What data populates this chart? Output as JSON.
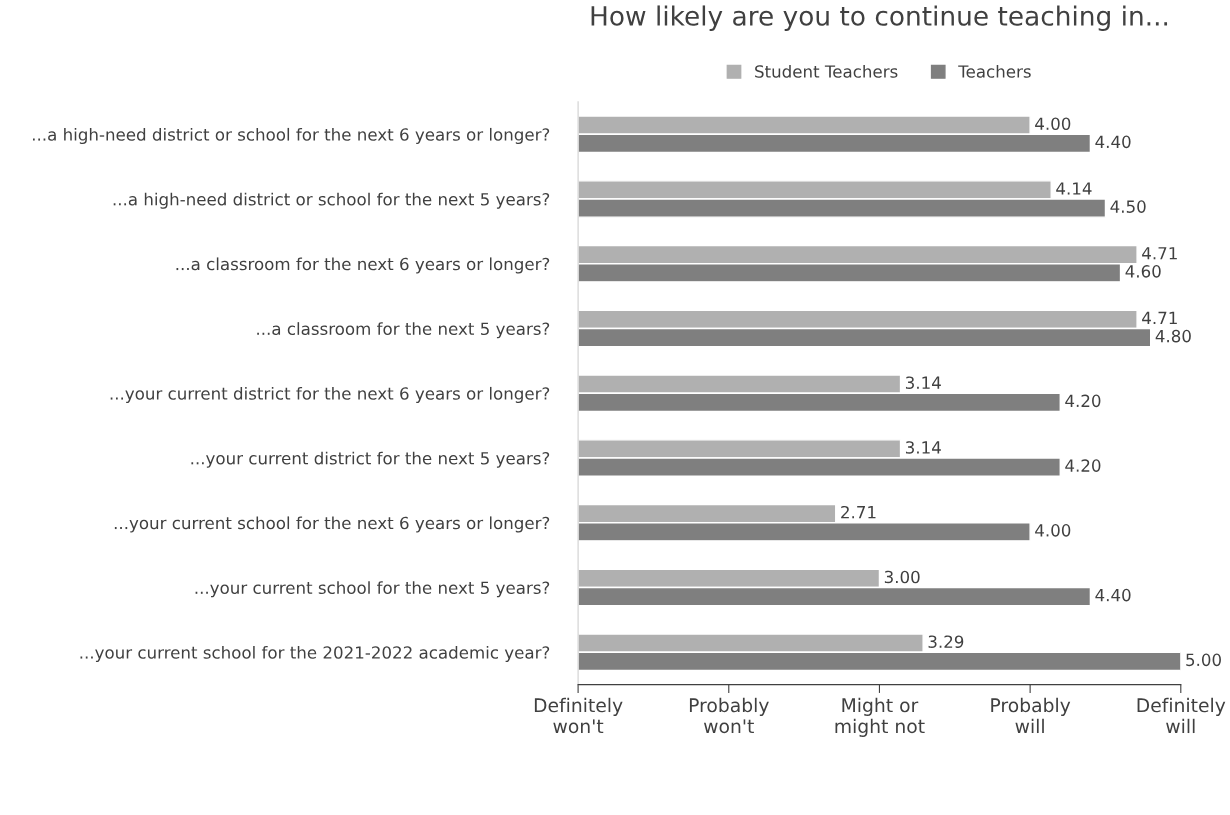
{
  "chart_data": {
    "type": "bar",
    "orientation": "horizontal",
    "title": "How likely are you to continue teaching in...",
    "categories": [
      "...a high-need district or school for the next 6 years or longer?",
      "...a high-need district or school for the next 5 years?",
      "...a classroom for the next 6 years or longer?",
      "...a classroom for the next 5 years?",
      "...your current district for the next 6 years or longer?",
      "...your current district for the next 5 years?",
      "...your current school for the next 6 years or longer?",
      "...your current school for the next 5 years?",
      "...your current school for the 2021-2022 academic year?"
    ],
    "series": [
      {
        "name": "Student Teachers",
        "color": "#b0b0b0",
        "values": [
          4.0,
          4.14,
          4.71,
          4.71,
          3.14,
          3.14,
          2.71,
          3.0,
          3.29
        ],
        "value_labels": [
          "4.00",
          "4.14",
          "4.71",
          "4.71",
          "3.14",
          "3.14",
          "2.71",
          "3.00",
          "3.29"
        ]
      },
      {
        "name": "Teachers",
        "color": "#7f7f7f",
        "values": [
          4.4,
          4.5,
          4.6,
          4.8,
          4.2,
          4.2,
          4.0,
          4.4,
          5.0
        ],
        "value_labels": [
          "4.40",
          "4.50",
          "4.60",
          "4.80",
          "4.20",
          "4.20",
          "4.00",
          "4.40",
          "5.00"
        ]
      }
    ],
    "xlim": [
      1,
      5
    ],
    "annotations": [
      "Definitely\nwon't",
      "Probably\nwon't",
      "Might or\nmight not",
      "Probably\nwill",
      "Definitely\nwill"
    ],
    "grid": false,
    "legend": "top"
  }
}
